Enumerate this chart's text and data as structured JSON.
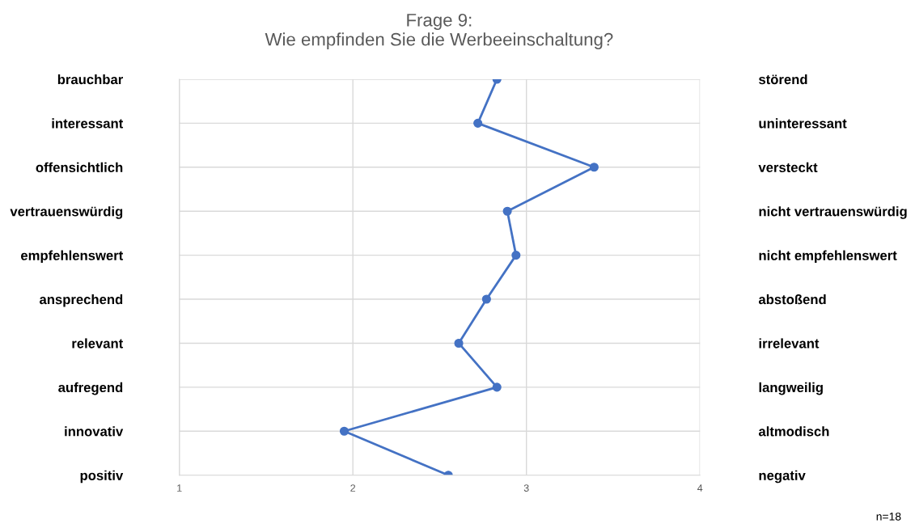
{
  "chart_data": {
    "type": "line",
    "orientation": "horizontal",
    "title": "Frage 9:\nWie empfinden Sie die Werbeeinschaltung?",
    "categories": [
      "brauchbar",
      "interessant",
      "offensichtlich",
      "vertrauenswürdig",
      "empfehlenswert",
      "ansprechend",
      "relevant",
      "aufregend",
      "innovativ",
      "positiv"
    ],
    "y2_categories": [
      "störend",
      "uninteressant",
      "versteckt",
      "nicht vertrauenswürdig",
      "nicht empfehlenswert",
      "abstoßend",
      "irrelevant",
      "langweilig",
      "altmodisch",
      "negativ"
    ],
    "series": [
      {
        "color": "#4472c4",
        "values": [
          2.83,
          2.72,
          3.39,
          2.89,
          2.94,
          2.77,
          2.61,
          2.83,
          1.95,
          2.55
        ]
      }
    ],
    "xlim": [
      1,
      4
    ],
    "xticks": [
      1,
      2,
      3,
      4
    ],
    "grid": true,
    "marker": "circle",
    "line_style": "solid",
    "annotations": [
      "n=18"
    ]
  }
}
